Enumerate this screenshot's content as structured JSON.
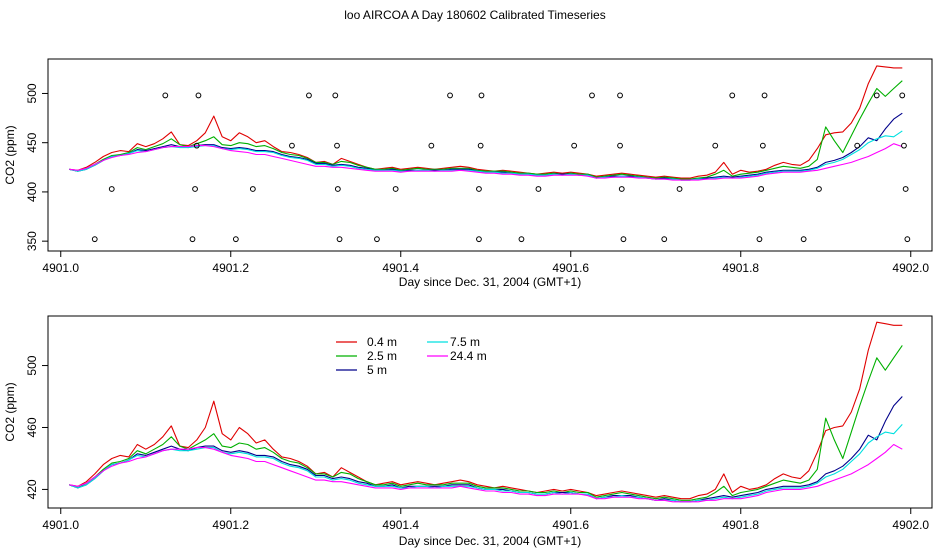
{
  "title": "loo AIRCOA A  Day 180602  Calibrated Timeseries",
  "colors": {
    "0.4 m": "#e00000",
    "2.5 m": "#00b000",
    "5 m": "#00008b",
    "7.5 m": "#00e0e0",
    "24.4 m": "#ff00ff"
  },
  "chart_data": [
    {
      "type": "line",
      "xlabel": "Day since Dec. 31, 2004 (GMT+1)",
      "ylabel": "CO2 (ppm)",
      "xlim": [
        4900.985,
        4902.025
      ],
      "ylim": [
        340,
        535
      ],
      "xticks": [
        4901.0,
        4901.2,
        4901.4,
        4901.6,
        4901.8,
        4902.0
      ],
      "xtick_labels": [
        "4901.0",
        "4901.2",
        "4901.4",
        "4901.6",
        "4901.8",
        "4902.0"
      ],
      "yticks": [
        350,
        400,
        450,
        500
      ],
      "ytick_labels": [
        "350",
        "400",
        "450",
        "500"
      ],
      "show_series": true,
      "points": [
        [
          4901.04,
          352
        ],
        [
          4901.06,
          403
        ],
        [
          4901.123,
          498
        ],
        [
          4901.155,
          352
        ],
        [
          4901.158,
          403
        ],
        [
          4901.16,
          447
        ],
        [
          4901.162,
          498
        ],
        [
          4901.206,
          352
        ],
        [
          4901.226,
          403
        ],
        [
          4901.272,
          447
        ],
        [
          4901.292,
          498
        ],
        [
          4901.323,
          498
        ],
        [
          4901.325,
          447
        ],
        [
          4901.326,
          403
        ],
        [
          4901.328,
          352
        ],
        [
          4901.372,
          352
        ],
        [
          4901.394,
          403
        ],
        [
          4901.436,
          447
        ],
        [
          4901.458,
          498
        ],
        [
          4901.492,
          352
        ],
        [
          4901.492,
          403
        ],
        [
          4901.494,
          447
        ],
        [
          4901.495,
          498
        ],
        [
          4901.542,
          352
        ],
        [
          4901.562,
          403
        ],
        [
          4901.604,
          447
        ],
        [
          4901.625,
          498
        ],
        [
          4901.658,
          498
        ],
        [
          4901.658,
          447
        ],
        [
          4901.66,
          403
        ],
        [
          4901.662,
          352
        ],
        [
          4901.71,
          352
        ],
        [
          4901.728,
          403
        ],
        [
          4901.77,
          447
        ],
        [
          4901.79,
          498
        ],
        [
          4901.822,
          352
        ],
        [
          4901.824,
          403
        ],
        [
          4901.826,
          447
        ],
        [
          4901.828,
          498
        ],
        [
          4901.874,
          352
        ],
        [
          4901.892,
          403
        ],
        [
          4901.937,
          447
        ],
        [
          4901.96,
          498
        ],
        [
          4901.99,
          498
        ],
        [
          4901.992,
          447
        ],
        [
          4901.994,
          403
        ],
        [
          4901.996,
          352
        ]
      ]
    },
    {
      "type": "line",
      "xlabel": "Day since Dec. 31, 2004 (GMT+1)",
      "ylabel": "CO2 (ppm)",
      "xlim": [
        4900.985,
        4902.025
      ],
      "ylim": [
        408,
        532
      ],
      "xticks": [
        4901.0,
        4901.2,
        4901.4,
        4901.6,
        4901.8,
        4902.0
      ],
      "xtick_labels": [
        "4901.0",
        "4901.2",
        "4901.4",
        "4901.6",
        "4901.8",
        "4902.0"
      ],
      "yticks": [
        420,
        460,
        500
      ],
      "ytick_labels": [
        "420",
        "460",
        "500"
      ],
      "legend": {
        "position": "top-left",
        "entries": [
          "0.4 m",
          "2.5 m",
          "5 m",
          "7.5 m",
          "24.4 m"
        ]
      },
      "show_series": true
    }
  ],
  "series": [
    {
      "name": "0.4 m",
      "x": [
        4901.01,
        4901.02,
        4901.03,
        4901.04,
        4901.05,
        4901.06,
        4901.07,
        4901.08,
        4901.09,
        4901.1,
        4901.11,
        4901.12,
        4901.13,
        4901.14,
        4901.15,
        4901.16,
        4901.17,
        4901.18,
        4901.19,
        4901.2,
        4901.21,
        4901.22,
        4901.23,
        4901.24,
        4901.25,
        4901.26,
        4901.27,
        4901.28,
        4901.29,
        4901.3,
        4901.31,
        4901.32,
        4901.33,
        4901.34,
        4901.35,
        4901.36,
        4901.37,
        4901.38,
        4901.39,
        4901.4,
        4901.41,
        4901.42,
        4901.43,
        4901.44,
        4901.45,
        4901.46,
        4901.47,
        4901.48,
        4901.49,
        4901.5,
        4901.51,
        4901.52,
        4901.53,
        4901.54,
        4901.55,
        4901.56,
        4901.57,
        4901.58,
        4901.59,
        4901.6,
        4901.61,
        4901.62,
        4901.63,
        4901.64,
        4901.65,
        4901.66,
        4901.67,
        4901.68,
        4901.69,
        4901.7,
        4901.71,
        4901.72,
        4901.73,
        4901.74,
        4901.75,
        4901.76,
        4901.77,
        4901.78,
        4901.79,
        4901.8,
        4901.81,
        4901.82,
        4901.83,
        4901.84,
        4901.85,
        4901.86,
        4901.87,
        4901.88,
        4901.89,
        4901.9,
        4901.91,
        4901.92,
        4901.93,
        4901.94,
        4901.95,
        4901.96,
        4901.97,
        4901.98,
        4901.99
      ],
      "y": [
        423,
        422,
        425,
        430,
        436,
        440,
        442,
        441,
        449,
        446,
        449,
        454,
        461,
        448,
        447,
        452,
        460,
        477,
        456,
        452,
        460,
        456,
        450,
        452,
        446,
        441,
        440,
        438,
        435,
        430,
        431,
        428,
        434,
        431,
        428,
        425,
        423,
        424,
        425,
        423,
        424,
        425,
        424,
        423,
        424,
        425,
        426,
        425,
        423,
        422,
        421,
        422,
        421,
        420,
        419,
        418,
        419,
        420,
        419,
        420,
        419,
        418,
        416,
        417,
        418,
        419,
        418,
        417,
        416,
        415,
        416,
        415,
        414,
        414,
        416,
        417,
        420,
        430,
        418,
        422,
        420,
        421,
        423,
        427,
        430,
        428,
        427,
        432,
        444,
        458,
        460,
        461,
        470,
        485,
        510,
        528,
        527,
        526,
        526
      ]
    },
    {
      "name": "2.5 m",
      "x": [
        4901.01,
        4901.02,
        4901.03,
        4901.04,
        4901.05,
        4901.06,
        4901.07,
        4901.08,
        4901.09,
        4901.1,
        4901.11,
        4901.12,
        4901.13,
        4901.14,
        4901.15,
        4901.16,
        4901.17,
        4901.18,
        4901.19,
        4901.2,
        4901.21,
        4901.22,
        4901.23,
        4901.24,
        4901.25,
        4901.26,
        4901.27,
        4901.28,
        4901.29,
        4901.3,
        4901.31,
        4901.32,
        4901.33,
        4901.34,
        4901.35,
        4901.36,
        4901.37,
        4901.38,
        4901.39,
        4901.4,
        4901.41,
        4901.42,
        4901.43,
        4901.44,
        4901.45,
        4901.46,
        4901.47,
        4901.48,
        4901.49,
        4901.5,
        4901.51,
        4901.52,
        4901.53,
        4901.54,
        4901.55,
        4901.56,
        4901.57,
        4901.58,
        4901.59,
        4901.6,
        4901.61,
        4901.62,
        4901.63,
        4901.64,
        4901.65,
        4901.66,
        4901.67,
        4901.68,
        4901.69,
        4901.7,
        4901.71,
        4901.72,
        4901.73,
        4901.74,
        4901.75,
        4901.76,
        4901.77,
        4901.78,
        4901.79,
        4901.8,
        4901.81,
        4901.82,
        4901.83,
        4901.84,
        4901.85,
        4901.86,
        4901.87,
        4901.88,
        4901.89,
        4901.9,
        4901.91,
        4901.92,
        4901.93,
        4901.94,
        4901.95,
        4901.96,
        4901.97,
        4901.98,
        4901.99
      ],
      "y": [
        423,
        421,
        424,
        428,
        433,
        437,
        438,
        440,
        445,
        443,
        446,
        449,
        454,
        448,
        446,
        449,
        452,
        456,
        448,
        447,
        450,
        449,
        446,
        447,
        444,
        440,
        438,
        437,
        434,
        430,
        430,
        428,
        431,
        430,
        427,
        425,
        423,
        423,
        424,
        422,
        423,
        424,
        423,
        423,
        423,
        424,
        424,
        424,
        422,
        421,
        421,
        421,
        420,
        419,
        419,
        418,
        418,
        419,
        418,
        419,
        418,
        418,
        415,
        416,
        417,
        418,
        417,
        416,
        415,
        414,
        415,
        414,
        413,
        413,
        414,
        415,
        418,
        422,
        416,
        418,
        419,
        420,
        422,
        424,
        426,
        425,
        424,
        426,
        433,
        466,
        452,
        440,
        457,
        474,
        490,
        505,
        497,
        505,
        513
      ]
    },
    {
      "name": "5 m",
      "x": [
        4901.01,
        4901.02,
        4901.03,
        4901.04,
        4901.05,
        4901.06,
        4901.07,
        4901.08,
        4901.09,
        4901.1,
        4901.11,
        4901.12,
        4901.13,
        4901.14,
        4901.15,
        4901.16,
        4901.17,
        4901.18,
        4901.19,
        4901.2,
        4901.21,
        4901.22,
        4901.23,
        4901.24,
        4901.25,
        4901.26,
        4901.27,
        4901.28,
        4901.29,
        4901.3,
        4901.31,
        4901.32,
        4901.33,
        4901.34,
        4901.35,
        4901.36,
        4901.37,
        4901.38,
        4901.39,
        4901.4,
        4901.41,
        4901.42,
        4901.43,
        4901.44,
        4901.45,
        4901.46,
        4901.47,
        4901.48,
        4901.49,
        4901.5,
        4901.51,
        4901.52,
        4901.53,
        4901.54,
        4901.55,
        4901.56,
        4901.57,
        4901.58,
        4901.59,
        4901.6,
        4901.61,
        4901.62,
        4901.63,
        4901.64,
        4901.65,
        4901.66,
        4901.67,
        4901.68,
        4901.69,
        4901.7,
        4901.71,
        4901.72,
        4901.73,
        4901.74,
        4901.75,
        4901.76,
        4901.77,
        4901.78,
        4901.79,
        4901.8,
        4901.81,
        4901.82,
        4901.83,
        4901.84,
        4901.85,
        4901.86,
        4901.87,
        4901.88,
        4901.89,
        4901.9,
        4901.91,
        4901.92,
        4901.93,
        4901.94,
        4901.95,
        4901.96,
        4901.97,
        4901.98,
        4901.99
      ],
      "y": [
        423,
        421,
        423,
        427,
        432,
        436,
        437,
        439,
        443,
        442,
        444,
        446,
        448,
        446,
        445,
        447,
        448,
        448,
        445,
        444,
        445,
        444,
        442,
        442,
        441,
        438,
        436,
        435,
        433,
        429,
        429,
        427,
        428,
        427,
        425,
        424,
        422,
        422,
        423,
        421,
        422,
        422,
        422,
        422,
        422,
        423,
        423,
        423,
        421,
        420,
        420,
        420,
        419,
        418,
        418,
        417,
        417,
        418,
        418,
        418,
        417,
        417,
        414,
        415,
        416,
        416,
        416,
        415,
        414,
        413,
        414,
        413,
        412,
        412,
        413,
        414,
        415,
        416,
        415,
        416,
        417,
        418,
        420,
        421,
        422,
        422,
        422,
        423,
        425,
        430,
        432,
        435,
        440,
        446,
        455,
        452,
        464,
        474,
        480
      ]
    },
    {
      "name": "7.5 m",
      "x": [
        4901.01,
        4901.02,
        4901.03,
        4901.04,
        4901.05,
        4901.06,
        4901.07,
        4901.08,
        4901.09,
        4901.1,
        4901.11,
        4901.12,
        4901.13,
        4901.14,
        4901.15,
        4901.16,
        4901.17,
        4901.18,
        4901.19,
        4901.2,
        4901.21,
        4901.22,
        4901.23,
        4901.24,
        4901.25,
        4901.26,
        4901.27,
        4901.28,
        4901.29,
        4901.3,
        4901.31,
        4901.32,
        4901.33,
        4901.34,
        4901.35,
        4901.36,
        4901.37,
        4901.38,
        4901.39,
        4901.4,
        4901.41,
        4901.42,
        4901.43,
        4901.44,
        4901.45,
        4901.46,
        4901.47,
        4901.48,
        4901.49,
        4901.5,
        4901.51,
        4901.52,
        4901.53,
        4901.54,
        4901.55,
        4901.56,
        4901.57,
        4901.58,
        4901.59,
        4901.6,
        4901.61,
        4901.62,
        4901.63,
        4901.64,
        4901.65,
        4901.66,
        4901.67,
        4901.68,
        4901.69,
        4901.7,
        4901.71,
        4901.72,
        4901.73,
        4901.74,
        4901.75,
        4901.76,
        4901.77,
        4901.78,
        4901.79,
        4901.8,
        4901.81,
        4901.82,
        4901.83,
        4901.84,
        4901.85,
        4901.86,
        4901.87,
        4901.88,
        4901.89,
        4901.9,
        4901.91,
        4901.92,
        4901.93,
        4901.94,
        4901.95,
        4901.96,
        4901.97,
        4901.98,
        4901.99
      ],
      "y": [
        423,
        421,
        423,
        427,
        432,
        436,
        437,
        439,
        442,
        441,
        443,
        445,
        446,
        445,
        445,
        446,
        447,
        447,
        444,
        443,
        444,
        443,
        441,
        441,
        440,
        437,
        435,
        434,
        432,
        428,
        428,
        426,
        427,
        426,
        424,
        423,
        422,
        422,
        422,
        421,
        421,
        422,
        422,
        421,
        422,
        422,
        422,
        422,
        421,
        420,
        420,
        419,
        419,
        418,
        418,
        417,
        417,
        418,
        417,
        418,
        417,
        417,
        414,
        415,
        415,
        416,
        415,
        415,
        414,
        413,
        413,
        413,
        412,
        412,
        413,
        413,
        414,
        415,
        414,
        415,
        416,
        417,
        419,
        420,
        421,
        421,
        421,
        422,
        424,
        428,
        430,
        433,
        438,
        443,
        450,
        454,
        457,
        456,
        462
      ]
    },
    {
      "name": "24.4 m",
      "x": [
        4901.01,
        4901.02,
        4901.03,
        4901.04,
        4901.05,
        4901.06,
        4901.07,
        4901.08,
        4901.09,
        4901.1,
        4901.11,
        4901.12,
        4901.13,
        4901.14,
        4901.15,
        4901.16,
        4901.17,
        4901.18,
        4901.19,
        4901.2,
        4901.21,
        4901.22,
        4901.23,
        4901.24,
        4901.25,
        4901.26,
        4901.27,
        4901.28,
        4901.29,
        4901.3,
        4901.31,
        4901.32,
        4901.33,
        4901.34,
        4901.35,
        4901.36,
        4901.37,
        4901.38,
        4901.39,
        4901.4,
        4901.41,
        4901.42,
        4901.43,
        4901.44,
        4901.45,
        4901.46,
        4901.47,
        4901.48,
        4901.49,
        4901.5,
        4901.51,
        4901.52,
        4901.53,
        4901.54,
        4901.55,
        4901.56,
        4901.57,
        4901.58,
        4901.59,
        4901.6,
        4901.61,
        4901.62,
        4901.63,
        4901.64,
        4901.65,
        4901.66,
        4901.67,
        4901.68,
        4901.69,
        4901.7,
        4901.71,
        4901.72,
        4901.73,
        4901.74,
        4901.75,
        4901.76,
        4901.77,
        4901.78,
        4901.79,
        4901.8,
        4901.81,
        4901.82,
        4901.83,
        4901.84,
        4901.85,
        4901.86,
        4901.87,
        4901.88,
        4901.89,
        4901.9,
        4901.91,
        4901.92,
        4901.93,
        4901.94,
        4901.95,
        4901.96,
        4901.97,
        4901.98,
        4901.99
      ],
      "y": [
        423,
        422,
        424,
        428,
        432,
        435,
        437,
        438,
        440,
        441,
        443,
        445,
        446,
        446,
        446,
        447,
        447,
        446,
        444,
        442,
        441,
        440,
        438,
        438,
        436,
        434,
        432,
        430,
        428,
        426,
        426,
        425,
        425,
        424,
        423,
        422,
        421,
        421,
        421,
        420,
        421,
        421,
        421,
        421,
        421,
        421,
        422,
        421,
        420,
        419,
        419,
        418,
        418,
        417,
        417,
        416,
        416,
        417,
        417,
        417,
        417,
        416,
        414,
        414,
        415,
        415,
        415,
        414,
        414,
        413,
        413,
        412,
        412,
        412,
        412,
        413,
        413,
        414,
        414,
        414,
        415,
        416,
        418,
        419,
        420,
        420,
        420,
        421,
        422,
        424,
        426,
        428,
        430,
        433,
        436,
        440,
        444,
        449,
        446
      ]
    }
  ]
}
